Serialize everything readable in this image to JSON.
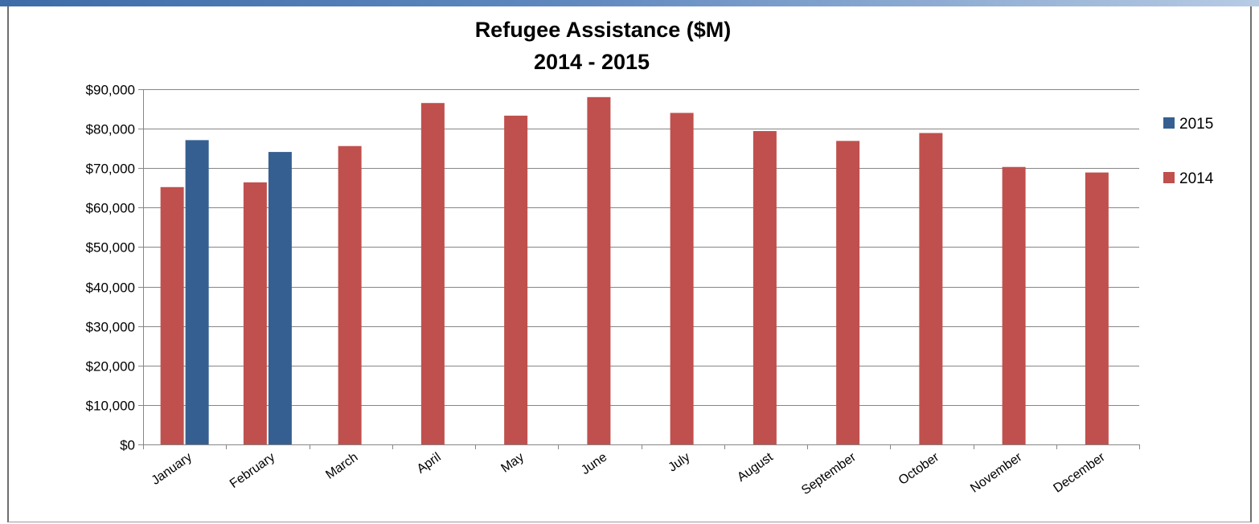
{
  "chart_data": {
    "type": "bar",
    "title": "Refugee Assistance ($M)",
    "subtitle": "2014 - 2015",
    "xlabel": "",
    "ylabel": "",
    "categories": [
      "January",
      "February",
      "March",
      "April",
      "May",
      "June",
      "July",
      "August",
      "September",
      "October",
      "November",
      "December"
    ],
    "series": [
      {
        "name": "2014",
        "color": "#c0504d",
        "values": [
          65200,
          66400,
          75600,
          86500,
          83300,
          88000,
          84000,
          79400,
          76900,
          78900,
          70300,
          68900
        ]
      },
      {
        "name": "2015",
        "color": "#365f91",
        "values": [
          77100,
          74100,
          null,
          null,
          null,
          null,
          null,
          null,
          null,
          null,
          null,
          null
        ]
      }
    ],
    "legend_order": [
      "2015",
      "2014"
    ],
    "legend_position": "right",
    "y_ticks": [
      "$0",
      "$10,000",
      "$20,000",
      "$30,000",
      "$40,000",
      "$50,000",
      "$60,000",
      "$70,000",
      "$80,000",
      "$90,000"
    ],
    "ylim": [
      0,
      90000
    ],
    "grid": true
  }
}
